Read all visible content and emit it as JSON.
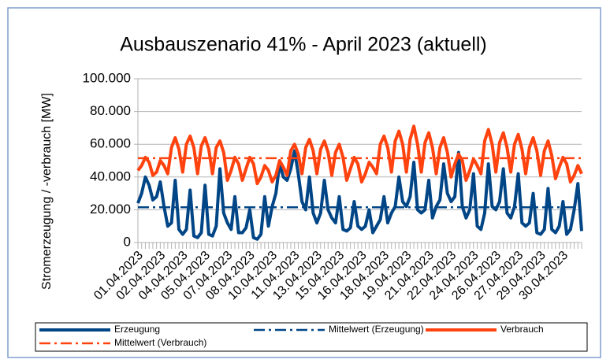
{
  "chart_data": {
    "type": "line",
    "title": "Ausbauszenario 41% - April 2023 (aktuell)",
    "y_label": "Stromerzeugung / -verbrauch [MW]",
    "ylim": [
      0,
      100000
    ],
    "yticks": [
      0,
      {
        "value": 20000,
        "label": "20.000"
      },
      {
        "value": 40000,
        "label": "40.000"
      },
      {
        "value": 60000,
        "label": "60.000"
      },
      {
        "value": 80000,
        "label": "80.000"
      },
      {
        "value": 100000,
        "label": "100.000"
      }
    ],
    "grid": true,
    "legend": "bottom",
    "categories": [
      "01.04.2023",
      null,
      null,
      null,
      null,
      null,
      "02.04.2023",
      null,
      null,
      null,
      null,
      null,
      "04.04.2023",
      null,
      null,
      null,
      null,
      null,
      "05.04.2023",
      null,
      null,
      null,
      null,
      null,
      "07.04.2023",
      null,
      null,
      null,
      null,
      null,
      "08.04.2023",
      null,
      null,
      null,
      null,
      null,
      "10.04.2023",
      null,
      null,
      null,
      null,
      null,
      "11.04.2023",
      null,
      null,
      null,
      null,
      null,
      "13.04.2023",
      null,
      null,
      null,
      null,
      null,
      "15.04.2023",
      null,
      null,
      null,
      null,
      null,
      "16.04.2023",
      null,
      null,
      null,
      null,
      null,
      "18.04.2023",
      null,
      null,
      null,
      null,
      null,
      "19.04.2023",
      null,
      null,
      null,
      null,
      null,
      "21.04.2023",
      null,
      null,
      null,
      null,
      null,
      "22.04.2023",
      null,
      null,
      null,
      null,
      null,
      "24.04.2023",
      null,
      null,
      null,
      null,
      null,
      "26.04.2023",
      null,
      null,
      null,
      null,
      null,
      "27.04.2023",
      null,
      null,
      null,
      null,
      null,
      "29.04.2023",
      null,
      null,
      null,
      null,
      null,
      "30.04.2023",
      null,
      null,
      null,
      null,
      null
    ],
    "series": [
      {
        "name": "Erzeugung",
        "color": "#004586",
        "values": [
          24000,
          30000,
          40000,
          35000,
          26000,
          28000,
          37000,
          22000,
          10000,
          12000,
          38000,
          8000,
          5000,
          8000,
          32000,
          4000,
          3000,
          6000,
          35000,
          5000,
          4000,
          10000,
          45000,
          18000,
          12000,
          8000,
          28000,
          6000,
          6000,
          9000,
          20000,
          3000,
          2000,
          5000,
          28000,
          10000,
          22000,
          30000,
          48000,
          40000,
          38000,
          45000,
          56000,
          42000,
          25000,
          20000,
          40000,
          18000,
          12000,
          18000,
          38000,
          20000,
          15000,
          12000,
          28000,
          8000,
          7000,
          9000,
          25000,
          10000,
          8000,
          10000,
          20000,
          6000,
          10000,
          14000,
          28000,
          12000,
          18000,
          22000,
          40000,
          25000,
          22000,
          28000,
          49000,
          20000,
          18000,
          20000,
          38000,
          15000,
          22000,
          26000,
          48000,
          30000,
          25000,
          28000,
          55000,
          22000,
          15000,
          20000,
          42000,
          10000,
          8000,
          18000,
          48000,
          22000,
          20000,
          25000,
          45000,
          18000,
          15000,
          22000,
          42000,
          12000,
          10000,
          12000,
          30000,
          6000,
          5000,
          8000,
          33000,
          8000,
          6000,
          10000,
          25000,
          5000,
          8000,
          20000,
          36000,
          7000
        ]
      },
      {
        "name": "Mittelwert (Erzeugung)",
        "color": "#004586",
        "dash": "dashdot",
        "value": 21500
      },
      {
        "name": "Verbrauch",
        "color": "#ff420e",
        "values": [
          44000,
          47000,
          52000,
          49000,
          41000,
          43000,
          50000,
          47000,
          42000,
          58000,
          64000,
          57000,
          43000,
          60000,
          65000,
          58000,
          42000,
          59000,
          64000,
          57000,
          42000,
          58000,
          62000,
          55000,
          38000,
          44000,
          52000,
          48000,
          38000,
          45000,
          52000,
          48000,
          36000,
          40000,
          47000,
          44000,
          37000,
          41000,
          50000,
          46000,
          41000,
          56000,
          60000,
          54000,
          42000,
          58000,
          63000,
          56000,
          42000,
          57000,
          62000,
          55000,
          41000,
          55000,
          60000,
          52000,
          38000,
          45000,
          52000,
          48000,
          37000,
          42000,
          49000,
          46000,
          42000,
          60000,
          65000,
          58000,
          43000,
          62000,
          68000,
          60000,
          43000,
          63000,
          71000,
          60000,
          43000,
          61000,
          67000,
          58000,
          42000,
          58000,
          64000,
          55000,
          40000,
          48000,
          54000,
          50000,
          38000,
          44000,
          51000,
          47000,
          42000,
          62000,
          69000,
          60000,
          43000,
          61000,
          67000,
          58000,
          43000,
          60000,
          66000,
          57000,
          42000,
          58000,
          64000,
          56000,
          41000,
          56000,
          62000,
          53000,
          39000,
          46000,
          52000,
          48000,
          37000,
          41000,
          47000,
          42000
        ]
      },
      {
        "name": "Mittelwert (Verbrauch)",
        "color": "#ff420e",
        "dash": "dashdot",
        "value": 51500
      }
    ]
  }
}
